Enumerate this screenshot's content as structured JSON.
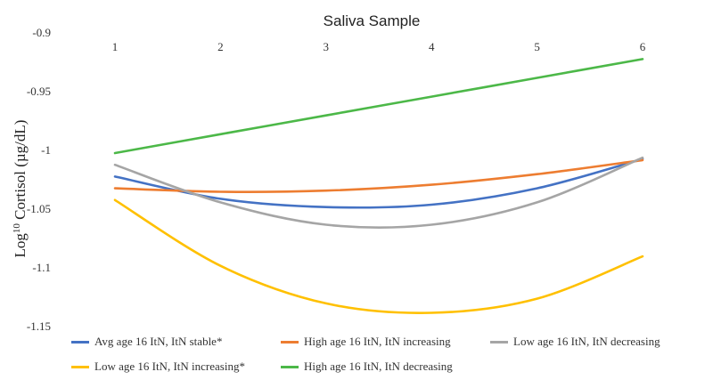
{
  "chart_data": {
    "type": "line",
    "title": "Saliva Sample",
    "ylabel_main": "Log",
    "ylabel_sup": "10",
    "ylabel_rest": " Cortisol (µg/dL)",
    "x": [
      1,
      2,
      3,
      4,
      5,
      6
    ],
    "x_tick_labels": [
      "1",
      "2",
      "3",
      "4",
      "5",
      "6"
    ],
    "x_axis_position": "top",
    "ylim": [
      -1.15,
      -0.9
    ],
    "y_ticks": [
      -0.9,
      -0.95,
      -1,
      -1.05,
      -1.1,
      -1.15
    ],
    "y_tick_labels": [
      "-0.9",
      "-0.95",
      "-1",
      "-1.05",
      "-1.1",
      "-1.15"
    ],
    "grid": false,
    "legend_position": "bottom",
    "series": [
      {
        "name": "Avg age 16 ItN, ItN stable*",
        "color": "#4472C4",
        "values": [
          -1.023,
          -1.042,
          -1.049,
          -1.047,
          -1.033,
          -1.008
        ]
      },
      {
        "name": "High age 16 ItN, ItN increasing",
        "color": "#ED7D31",
        "values": [
          -1.033,
          -1.036,
          -1.035,
          -1.03,
          -1.021,
          -1.009
        ]
      },
      {
        "name": "Low age 16 ItN, ItN decreasing",
        "color": "#A5A5A5",
        "values": [
          -1.013,
          -1.045,
          -1.064,
          -1.064,
          -1.045,
          -1.007
        ]
      },
      {
        "name": "Low age 16 ItN, ItN increasing*",
        "color": "#FFC000",
        "values": [
          -1.043,
          -1.099,
          -1.131,
          -1.139,
          -1.127,
          -1.091
        ]
      },
      {
        "name": "High age 16 ItN, ItN decreasing",
        "color": "#4CB848",
        "values": [
          -1.003,
          -0.987,
          -0.971,
          -0.955,
          -0.939,
          -0.923
        ]
      }
    ]
  }
}
